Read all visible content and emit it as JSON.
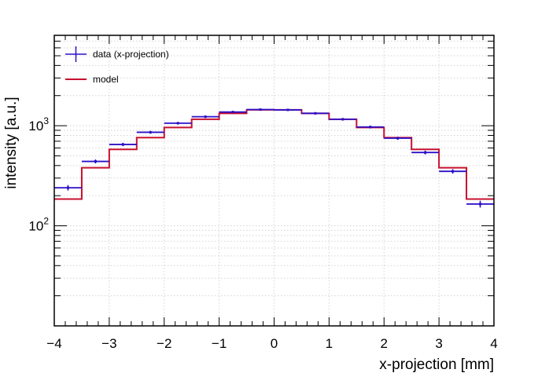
{
  "chart_data": {
    "type": "line",
    "xlabel": "x-projection [mm]",
    "ylabel": "intensity [a.u.]",
    "xlim": [
      -4,
      4
    ],
    "ylim": [
      10,
      8000
    ],
    "yscale": "log",
    "grid": true,
    "legend_position": "top-left",
    "x_ticks": [
      "−4",
      "−3",
      "−2",
      "−1",
      "0",
      "1",
      "2",
      "3",
      "4"
    ],
    "y_ticks": [
      {
        "value": 100,
        "base": "10",
        "exp": "2"
      },
      {
        "value": 1000,
        "base": "10",
        "exp": "3"
      }
    ],
    "bin_edges": [
      -4,
      -3.5,
      -3,
      -2.5,
      -2,
      -1.5,
      -1,
      -0.5,
      0,
      0.5,
      1,
      1.5,
      2,
      2.5,
      3,
      3.5,
      4
    ],
    "series": [
      {
        "name": "data (x-projection)",
        "style": "histogram-errorbars",
        "color": "#2b10c8",
        "values": [
          240,
          440,
          650,
          860,
          1060,
          1230,
          1370,
          1450,
          1440,
          1330,
          1160,
          970,
          750,
          540,
          350,
          165
        ],
        "errors": [
          15,
          20,
          25,
          29,
          32,
          35,
          37,
          38,
          38,
          36,
          34,
          31,
          27,
          23,
          18,
          13
        ]
      },
      {
        "name": "model",
        "style": "step",
        "color": "#c8102e",
        "values": [
          185,
          380,
          580,
          760,
          960,
          1160,
          1330,
          1440,
          1440,
          1330,
          1160,
          960,
          760,
          580,
          380,
          185
        ]
      }
    ]
  }
}
